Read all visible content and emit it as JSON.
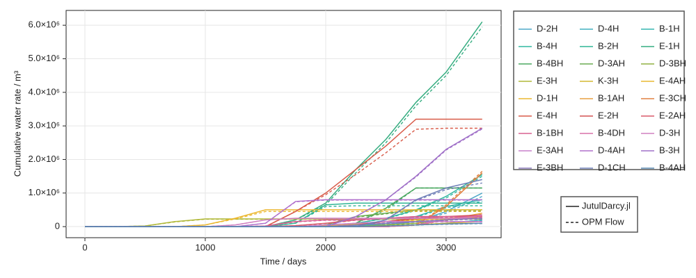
{
  "chart_data": {
    "type": "line",
    "ylabel": "Cumulative water rate / m³",
    "xlabel": "Time / days",
    "x": [
      0,
      250,
      500,
      750,
      1000,
      1250,
      1500,
      1750,
      2000,
      2250,
      2500,
      2750,
      3000,
      3300
    ],
    "xlim": [
      -156,
      3457
    ],
    "xticks": [
      0,
      1000,
      2000,
      3000
    ],
    "ylim": [
      -330000,
      6440000
    ],
    "yticks": [
      0,
      {
        "value": 1000000,
        "label": "1.0×10⁶"
      },
      {
        "value": 2000000,
        "label": "2.0×10⁶"
      },
      {
        "value": 3000000,
        "label": "3.0×10⁶"
      },
      {
        "value": 4000000,
        "label": "4.0×10⁶"
      },
      {
        "value": 5000000,
        "label": "5.0×10⁶"
      },
      {
        "value": 6000000,
        "label": "6.0×10⁶"
      }
    ],
    "grid": true,
    "style_legend": [
      "JutulDarcy.jl",
      "OPM Flow"
    ],
    "series": [
      {
        "name": "D-2H",
        "color": "#4fa8c8",
        "values": [
          0,
          0,
          0,
          0,
          0,
          0,
          0,
          0,
          0,
          20000,
          60000,
          150000,
          450000,
          1000000
        ],
        "opm_values": [
          0,
          0,
          0,
          0,
          0,
          0,
          0,
          0,
          0,
          20000,
          60000,
          140000,
          400000,
          900000
        ]
      },
      {
        "name": "D-4H",
        "color": "#40b0c0",
        "values": [
          0,
          0,
          0,
          0,
          0,
          0,
          0,
          0,
          0,
          0,
          0,
          50000,
          100000,
          200000
        ],
        "opm_values": [
          0,
          0,
          0,
          0,
          0,
          0,
          0,
          0,
          0,
          0,
          0,
          40000,
          90000,
          180000
        ]
      },
      {
        "name": "B-1H",
        "color": "#35b5b0",
        "values": [
          0,
          0,
          0,
          0,
          0,
          0,
          0,
          0,
          0,
          0,
          100000,
          300000,
          600000,
          800000
        ],
        "opm_values": [
          0,
          0,
          0,
          0,
          0,
          0,
          0,
          0,
          0,
          0,
          90000,
          280000,
          560000,
          750000
        ]
      },
      {
        "name": "B-4H",
        "color": "#30b8a0",
        "values": [
          0,
          0,
          0,
          0,
          0,
          0,
          0,
          0,
          30000,
          100000,
          250000,
          500000,
          900000,
          1550000
        ],
        "opm_values": [
          0,
          0,
          0,
          0,
          0,
          0,
          0,
          0,
          30000,
          100000,
          240000,
          480000,
          850000,
          1500000
        ]
      },
      {
        "name": "B-2H",
        "color": "#2fb595",
        "values": [
          0,
          0,
          0,
          0,
          0,
          0,
          0,
          100000,
          650000,
          700000,
          700000,
          700000,
          700000,
          700000
        ],
        "opm_values": [
          0,
          0,
          0,
          0,
          0,
          0,
          0,
          100000,
          600000,
          620000,
          620000,
          620000,
          620000,
          620000
        ]
      },
      {
        "name": "E-1H",
        "color": "#35ad80",
        "values": [
          0,
          0,
          0,
          0,
          0,
          0,
          0,
          200000,
          700000,
          1700000,
          2600000,
          3700000,
          4600000,
          6100000
        ],
        "opm_values": [
          0,
          0,
          0,
          0,
          0,
          0,
          0,
          200000,
          650000,
          1600000,
          2500000,
          3600000,
          4500000,
          5950000
        ]
      },
      {
        "name": "B-4BH",
        "color": "#4aa860",
        "values": [
          0,
          0,
          0,
          0,
          0,
          0,
          0,
          0,
          0,
          100000,
          550000,
          1150000,
          1150000,
          1150000
        ],
        "opm_values": [
          0,
          0,
          0,
          0,
          0,
          0,
          0,
          0,
          0,
          100000,
          500000,
          1150000,
          1150000,
          1150000
        ]
      },
      {
        "name": "D-3AH",
        "color": "#6aac50",
        "values": [
          0,
          0,
          0,
          0,
          0,
          0,
          0,
          0,
          50000,
          300000,
          400000,
          500000,
          500000,
          500000
        ],
        "opm_values": [
          0,
          0,
          0,
          0,
          0,
          0,
          0,
          0,
          50000,
          280000,
          380000,
          470000,
          470000,
          470000
        ]
      },
      {
        "name": "D-3BH",
        "color": "#90b040",
        "values": [
          0,
          0,
          0,
          0,
          0,
          0,
          0,
          0,
          0,
          0,
          50000,
          100000,
          200000,
          300000
        ],
        "opm_values": [
          0,
          0,
          0,
          0,
          0,
          0,
          0,
          0,
          0,
          0,
          40000,
          90000,
          180000,
          270000
        ]
      },
      {
        "name": "E-3H",
        "color": "#b0b838",
        "values": [
          0,
          0,
          20000,
          150000,
          230000,
          230000,
          230000,
          230000,
          230000,
          230000,
          230000,
          230000,
          230000,
          230000
        ],
        "opm_values": [
          0,
          0,
          20000,
          140000,
          220000,
          220000,
          220000,
          220000,
          220000,
          220000,
          220000,
          220000,
          220000,
          220000
        ]
      },
      {
        "name": "K-3H",
        "color": "#d4b830",
        "values": [
          0,
          0,
          0,
          0,
          0,
          0,
          0,
          0,
          0,
          0,
          0,
          50000,
          100000,
          150000
        ],
        "opm_values": [
          0,
          0,
          0,
          0,
          0,
          0,
          0,
          0,
          0,
          0,
          0,
          50000,
          100000,
          150000
        ]
      },
      {
        "name": "E-4AH",
        "color": "#e8b830",
        "values": [
          0,
          0,
          0,
          0,
          0,
          0,
          0,
          0,
          20000,
          80000,
          150000,
          200000,
          250000,
          300000
        ],
        "opm_values": [
          0,
          0,
          0,
          0,
          0,
          0,
          0,
          0,
          20000,
          70000,
          140000,
          190000,
          230000,
          280000
        ]
      },
      {
        "name": "D-1H",
        "color": "#ecb830",
        "values": [
          0,
          0,
          0,
          0,
          50000,
          250000,
          500000,
          500000,
          500000,
          500000,
          500000,
          500000,
          500000,
          500000
        ],
        "opm_values": [
          0,
          0,
          0,
          0,
          50000,
          230000,
          450000,
          450000,
          450000,
          450000,
          450000,
          450000,
          450000,
          450000
        ]
      },
      {
        "name": "B-1AH",
        "color": "#e8a040",
        "values": [
          0,
          0,
          0,
          0,
          0,
          0,
          0,
          0,
          0,
          0,
          0,
          50000,
          200000,
          400000
        ],
        "opm_values": [
          0,
          0,
          0,
          0,
          0,
          0,
          0,
          0,
          0,
          0,
          0,
          40000,
          180000,
          370000
        ]
      },
      {
        "name": "E-3CH",
        "color": "#e08040",
        "values": [
          0,
          0,
          0,
          0,
          0,
          0,
          0,
          0,
          0,
          0,
          0,
          50000,
          600000,
          1600000
        ],
        "opm_values": [
          0,
          0,
          0,
          0,
          0,
          0,
          0,
          0,
          0,
          0,
          0,
          50000,
          650000,
          1650000
        ]
      },
      {
        "name": "E-4H",
        "color": "#d85a48",
        "values": [
          0,
          0,
          0,
          0,
          0,
          0,
          0,
          450000,
          1000000,
          1700000,
          2400000,
          3200000,
          3200000,
          3200000
        ],
        "opm_values": [
          0,
          0,
          0,
          0,
          0,
          0,
          0,
          450000,
          950000,
          1550000,
          2200000,
          2900000,
          2930000,
          2930000
        ]
      },
      {
        "name": "E-2H",
        "color": "#d45050",
        "values": [
          0,
          0,
          0,
          0,
          0,
          0,
          0,
          0,
          0,
          50000,
          150000,
          250000,
          300000,
          350000
        ],
        "opm_values": [
          0,
          0,
          0,
          0,
          0,
          0,
          0,
          0,
          0,
          50000,
          140000,
          230000,
          280000,
          330000
        ]
      },
      {
        "name": "E-2AH",
        "color": "#d85868",
        "values": [
          0,
          0,
          0,
          0,
          0,
          0,
          0,
          30000,
          100000,
          200000,
          250000,
          300000,
          300000,
          300000
        ],
        "opm_values": [
          0,
          0,
          0,
          0,
          0,
          0,
          0,
          30000,
          90000,
          190000,
          240000,
          280000,
          280000,
          280000
        ]
      },
      {
        "name": "B-1BH",
        "color": "#d86090",
        "values": [
          0,
          0,
          0,
          0,
          0,
          0,
          20000,
          150000,
          200000,
          200000,
          250000,
          300000,
          300000,
          300000
        ],
        "opm_values": [
          0,
          0,
          0,
          0,
          0,
          0,
          20000,
          140000,
          190000,
          190000,
          240000,
          280000,
          280000,
          280000
        ]
      },
      {
        "name": "B-4DH",
        "color": "#d870a8",
        "values": [
          0,
          0,
          0,
          0,
          0,
          0,
          0,
          0,
          0,
          0,
          0,
          50000,
          200000,
          350000
        ],
        "opm_values": [
          0,
          0,
          0,
          0,
          0,
          0,
          0,
          0,
          0,
          0,
          0,
          50000,
          190000,
          330000
        ]
      },
      {
        "name": "D-3H",
        "color": "#d080c0",
        "values": [
          0,
          0,
          0,
          0,
          0,
          50000,
          200000,
          250000,
          250000,
          250000,
          250000,
          250000,
          250000,
          250000
        ],
        "opm_values": [
          0,
          0,
          0,
          0,
          0,
          50000,
          200000,
          240000,
          240000,
          240000,
          240000,
          240000,
          240000,
          240000
        ]
      },
      {
        "name": "E-3AH",
        "color": "#c880cc",
        "values": [
          0,
          0,
          0,
          0,
          0,
          0,
          0,
          0,
          50000,
          100000,
          150000,
          150000,
          150000,
          150000
        ],
        "opm_values": [
          0,
          0,
          0,
          0,
          0,
          0,
          0,
          0,
          50000,
          100000,
          140000,
          140000,
          140000,
          140000
        ]
      },
      {
        "name": "D-4AH",
        "color": "#b070cc",
        "values": [
          0,
          0,
          0,
          0,
          0,
          0,
          100000,
          750000,
          800000,
          800000,
          800000,
          800000,
          800000,
          800000
        ],
        "opm_values": [
          0,
          0,
          0,
          0,
          0,
          0,
          100000,
          740000,
          790000,
          790000,
          790000,
          790000,
          790000,
          790000
        ]
      },
      {
        "name": "B-3H",
        "color": "#a070c8",
        "values": [
          0,
          0,
          0,
          0,
          0,
          0,
          0,
          0,
          0,
          300000,
          800000,
          1500000,
          2300000,
          2930000
        ],
        "opm_values": [
          0,
          0,
          0,
          0,
          0,
          0,
          0,
          0,
          0,
          300000,
          800000,
          1480000,
          2280000,
          2910000
        ]
      },
      {
        "name": "E-3BH",
        "color": "#8878b8",
        "values": [
          0,
          0,
          0,
          0,
          0,
          0,
          0,
          0,
          0,
          50000,
          100000,
          150000,
          200000,
          250000
        ],
        "opm_values": [
          0,
          0,
          0,
          0,
          0,
          0,
          0,
          0,
          0,
          50000,
          90000,
          140000,
          190000,
          230000
        ]
      },
      {
        "name": "D-1CH",
        "color": "#7080b8",
        "values": [
          0,
          0,
          0,
          0,
          0,
          0,
          0,
          0,
          0,
          0,
          200000,
          800000,
          1150000,
          1400000
        ],
        "opm_values": [
          0,
          0,
          0,
          0,
          0,
          0,
          0,
          0,
          0,
          0,
          200000,
          780000,
          1100000,
          1300000
        ]
      },
      {
        "name": "B-4AH",
        "color": "#5a88b0",
        "values": [
          0,
          0,
          0,
          0,
          0,
          0,
          0,
          0,
          0,
          0,
          20000,
          50000,
          80000,
          100000
        ],
        "opm_values": [
          0,
          0,
          0,
          0,
          0,
          0,
          0,
          0,
          0,
          0,
          20000,
          50000,
          70000,
          90000
        ]
      }
    ]
  }
}
